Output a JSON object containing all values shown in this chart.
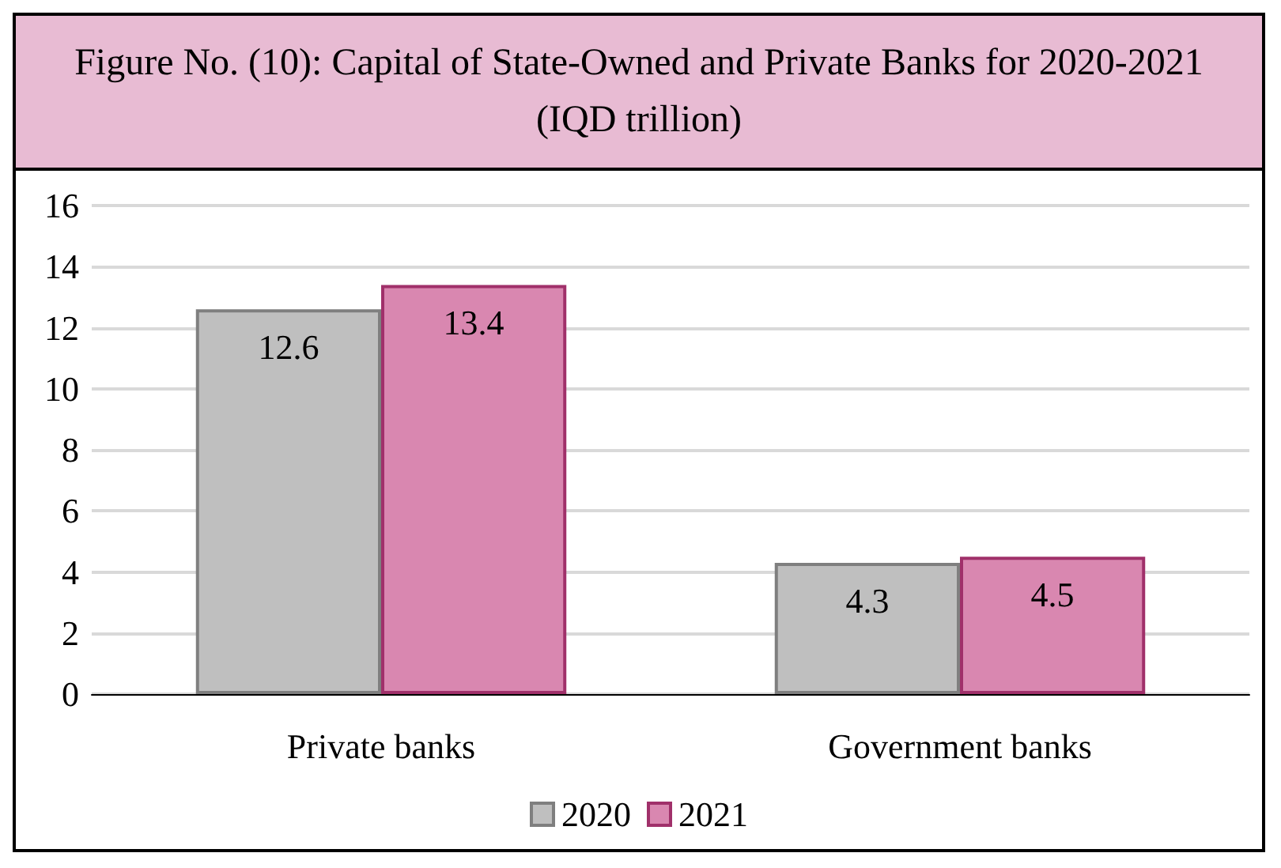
{
  "chart_data": {
    "type": "bar",
    "title": "Figure No. (10): Capital of State-Owned and Private Banks for 2020-2021 (IQD trillion)",
    "categories": [
      "Private banks",
      "Government banks"
    ],
    "series": [
      {
        "name": "2020",
        "color": "#bfbfbf",
        "values": [
          12.6,
          4.3
        ]
      },
      {
        "name": "2021",
        "color": "#d987b0",
        "values": [
          13.4,
          4.5
        ]
      }
    ],
    "ylim": [
      0,
      16
    ],
    "yticks": [
      0,
      2,
      4,
      6,
      8,
      10,
      12,
      14,
      16
    ],
    "grid": "y",
    "legend": "bottom",
    "data_labels": true
  }
}
